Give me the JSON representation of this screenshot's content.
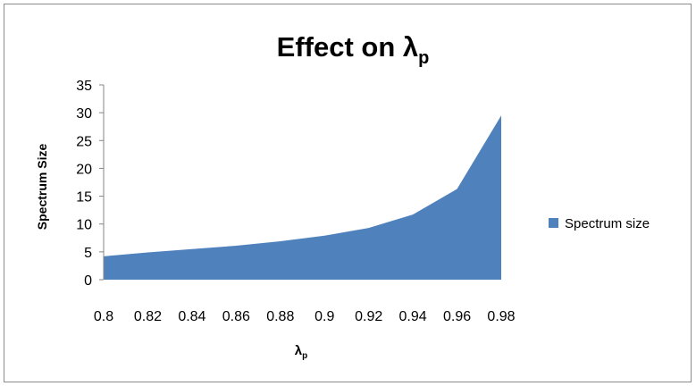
{
  "chart_data": {
    "type": "area",
    "title": "Effect on λ",
    "title_subscript": "p",
    "xlabel": "λ",
    "xlabel_subscript": "p",
    "ylabel": "Spectrum Size",
    "categories": [
      "0.8",
      "0.82",
      "0.84",
      "0.86",
      "0.88",
      "0.9",
      "0.92",
      "0.94",
      "0.96",
      "0.98"
    ],
    "series": [
      {
        "name": "Spectrum size",
        "color": "#4f81bd",
        "values": [
          4.2,
          4.9,
          5.5,
          6.1,
          6.9,
          7.9,
          9.3,
          11.7,
          16.3,
          29.5
        ]
      }
    ],
    "yticks": [
      "0",
      "5",
      "10",
      "15",
      "20",
      "25",
      "30",
      "35"
    ],
    "ylim": [
      0,
      35
    ],
    "grid": false,
    "legend": "right"
  }
}
